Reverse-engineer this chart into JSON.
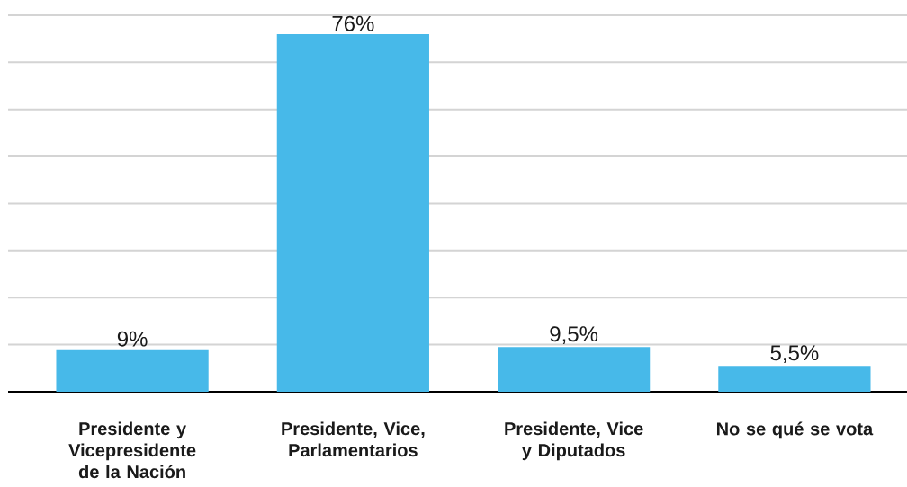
{
  "chart_data": {
    "type": "bar",
    "categories": [
      "Presidente y Vicepresidente de la Nación",
      "Presidente, Vice, Parlamentarios",
      "Presidente, Vice y Diputados",
      "No se qué se vota"
    ],
    "values": [
      9,
      76,
      9.5,
      5.5
    ],
    "color": "#47b9e9",
    "value_labels": [
      "9%",
      "76%",
      "9,5%",
      "5,5%"
    ],
    "ylim": [
      0,
      80
    ],
    "yticks": [
      {
        "value": 0,
        "label": null
      },
      {
        "value": 10,
        "label": null
      },
      {
        "value": 20,
        "label": null
      },
      {
        "value": 30,
        "label": null
      },
      {
        "value": 40,
        "label": null
      },
      {
        "value": 50,
        "label": null
      },
      {
        "value": 60,
        "label": null
      },
      {
        "value": 70,
        "label": null
      },
      {
        "value": 80,
        "label": null
      }
    ],
    "grid": "y",
    "tick_labels": "x"
  }
}
